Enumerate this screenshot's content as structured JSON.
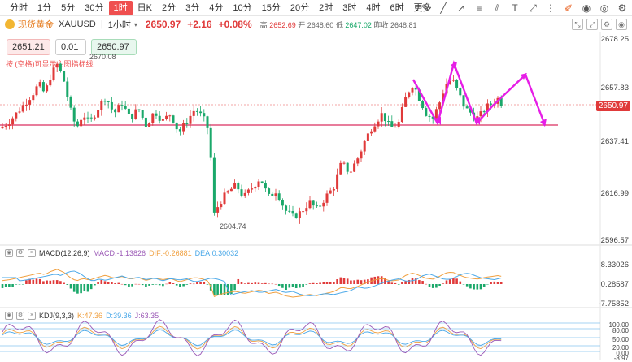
{
  "toolbar": {
    "timeframes": [
      "分时",
      "1分",
      "5分",
      "30分",
      "1时",
      "日K",
      "2分",
      "3分",
      "4分",
      "10分",
      "15分",
      "20分",
      "2时",
      "3时",
      "4时",
      "6时",
      "更多"
    ],
    "active_index": 4,
    "more_icon": "chevron-down-icon",
    "tools": [
      "pencil-icon",
      "trend-line-icon",
      "ray-icon",
      "horizontal-line-icon",
      "channel-icon",
      "text-icon",
      "measure-icon",
      "fibonacci-icon",
      "color-edit-icon",
      "camera-icon",
      "target-icon",
      "settings-icon"
    ]
  },
  "header": {
    "name": "现货黄金",
    "symbol": "XAUUSD",
    "timeframe": "1小时",
    "last_price": "2650.97",
    "change": "+2.16",
    "change_pct": "+0.08%",
    "high_label": "高",
    "high": "2652.69",
    "open_label": "开",
    "open": "2648.60",
    "low_label": "低",
    "low": "2647.02",
    "prev_label": "昨收",
    "prev": "2648.81"
  },
  "order": {
    "sell": "2651.21",
    "qty": "0.01",
    "buy": "2650.97"
  },
  "note": "按 (空格)可显示主图指标线",
  "labels": {
    "high_mark": "2670.08",
    "low_mark": "2604.74"
  },
  "yaxis": [
    "2678.25",
    "2657.83",
    "2650.97",
    "2637.41",
    "2616.99",
    "2596.57"
  ],
  "macd": {
    "title": "MACD(12,26,9)",
    "macd_label": "MACD:",
    "macd_value": "-1.13826",
    "dif_label": "DIF:",
    "dif_value": "-0.26881",
    "dea_label": "DEA:",
    "dea_value": "0.30032",
    "axis": [
      "8.33026",
      "0.28587",
      "-7.75852"
    ]
  },
  "kdj": {
    "title": "KDJ(9,3,3)",
    "k_label": "K:",
    "k_value": "47.36",
    "d_label": "D:",
    "d_value": "39.36",
    "j_label": "J:",
    "j_value": "63.35",
    "axis": [
      "100.00",
      "80.00",
      "50.00",
      "20.00",
      "0.00",
      "-8.97"
    ]
  },
  "colors": {
    "up": "#e03a3a",
    "down": "#1aa86a",
    "support_line": "#e0507a",
    "annotation": "#e61ee6",
    "dif": "#f0a040",
    "dea": "#4aa8e8"
  }
}
